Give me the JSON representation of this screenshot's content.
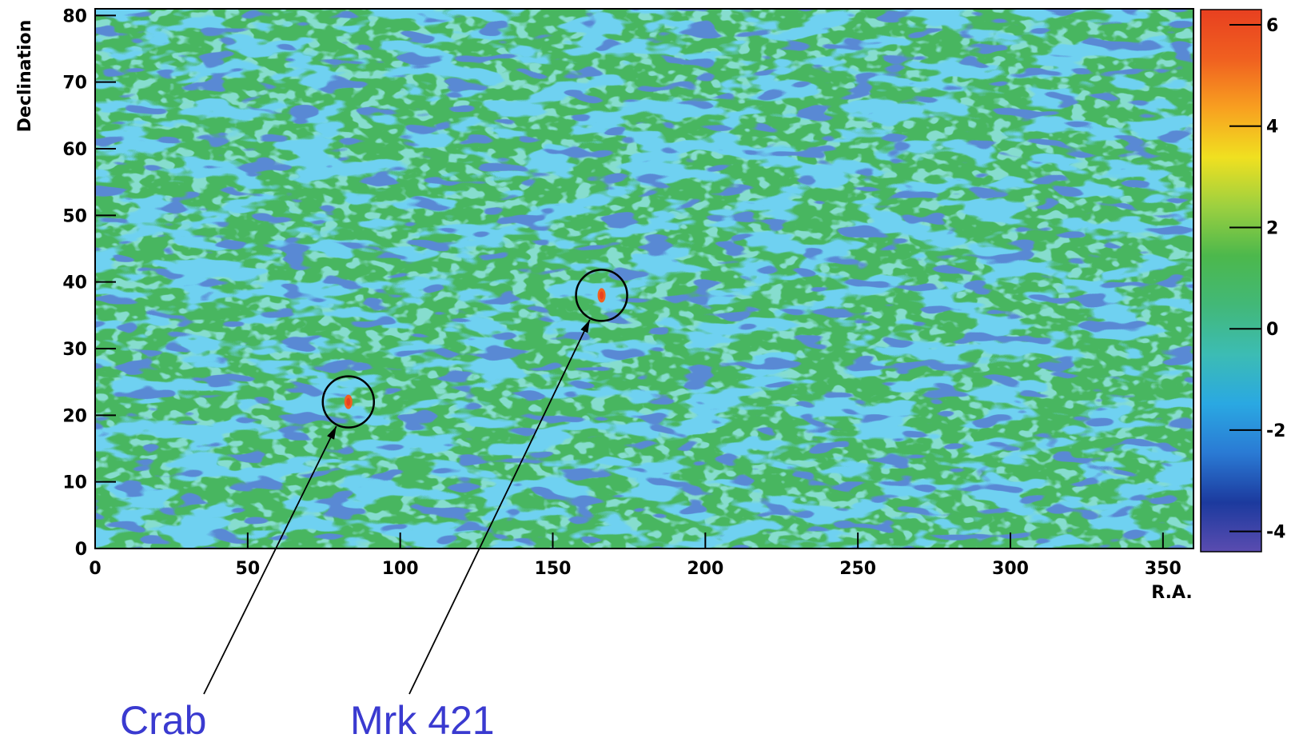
{
  "chart_data": {
    "type": "heatmap",
    "x_label": "R.A.",
    "y_label": "Declination",
    "xlim": [
      0,
      360
    ],
    "xticks": [
      0,
      50,
      100,
      150,
      200,
      250,
      300,
      350
    ],
    "ylim": [
      0,
      81
    ],
    "yticks": [
      0,
      10,
      20,
      30,
      40,
      50,
      60,
      70,
      80
    ],
    "zlim": [
      -4.4,
      6.3
    ],
    "zticks": [
      -4,
      -2,
      0,
      2,
      4,
      6
    ],
    "colormap": [
      "#5a4cb0",
      "#1c3a9e",
      "#2a7ad4",
      "#2aa8e2",
      "#3cbcb4",
      "#42b878",
      "#4cb84c",
      "#9cd040",
      "#f0e020",
      "#f8a020",
      "#f06020",
      "#e84020"
    ],
    "annotations": [
      {
        "text": "Crab",
        "x": 83,
        "y": 22
      },
      {
        "text": "Mrk 421",
        "x": 166,
        "y": 38
      }
    ]
  }
}
